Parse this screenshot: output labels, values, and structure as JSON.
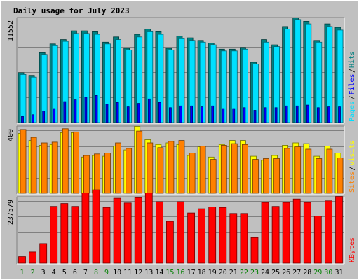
{
  "chart_data": {
    "type": "bar",
    "title": "Daily usage for July 2023",
    "x": [
      "1",
      "2",
      "3",
      "4",
      "5",
      "6",
      "7",
      "8",
      "9",
      "10",
      "11",
      "12",
      "13",
      "14",
      "15",
      "16",
      "17",
      "18",
      "19",
      "20",
      "21",
      "22",
      "23",
      "24",
      "25",
      "26",
      "27",
      "28",
      "29",
      "30",
      "31"
    ],
    "weekend_days": [
      "1",
      "2",
      "8",
      "9",
      "15",
      "16",
      "22",
      "23",
      "29",
      "30"
    ],
    "colors": {
      "background": "#c0c0c0",
      "plot": "#c0c0c0",
      "title": "#0000ff",
      "hits": "#008080",
      "files": "#00e0ff",
      "pages": "#0000ff",
      "visits": "#ffff00",
      "sites": "#ff8000",
      "kbytes": "#ff0000",
      "weekend_tick": "#008000",
      "weekday_tick": "#000000"
    },
    "panels": [
      {
        "id": "hits",
        "axis_max_label": "11552",
        "ymax": 11552,
        "legend": [
          {
            "label": "Hits",
            "color": "#008080"
          },
          {
            "label": "Files",
            "color": "#0000ff"
          },
          {
            "label": "Pages",
            "color": "#00e0ff"
          }
        ],
        "series": [
          {
            "name": "Hits",
            "color": "#008080",
            "values": [
              5700,
              5400,
              8000,
              9000,
              9500,
              10500,
              10500,
              10400,
              9200,
              9800,
              8500,
              10100,
              10700,
              10400,
              8500,
              9900,
              9700,
              9400,
              9100,
              8400,
              8400,
              8600,
              6900,
              9500,
              8900,
              11000,
              12000,
              11600,
              9400,
              11300,
              10900
            ]
          },
          {
            "name": "Files",
            "color": "#00e0ff",
            "values": [
              5500,
              5200,
              7800,
              8800,
              9300,
              10200,
              10200,
              10100,
              9000,
              9500,
              8300,
              9800,
              10400,
              10100,
              8300,
              9600,
              9400,
              9200,
              8900,
              8200,
              8200,
              8400,
              6700,
              9200,
              8700,
              10700,
              11800,
              11300,
              9200,
              11000,
              10600
            ]
          },
          {
            "name": "Pages",
            "color": "#0000ff",
            "values": [
              700,
              900,
              1300,
              1600,
              2400,
              2600,
              2900,
              3100,
              2100,
              2300,
              1800,
              2200,
              2700,
              2300,
              1700,
              1900,
              1900,
              1800,
              1900,
              1600,
              1600,
              1700,
              1400,
              1700,
              1700,
              1900,
              1900,
              2000,
              1700,
              1800,
              1800
            ]
          }
        ]
      },
      {
        "id": "visits",
        "axis_max_label": "400",
        "ymax": 400,
        "legend": [
          {
            "label": "Visits",
            "color": "#ffff00"
          },
          {
            "label": "Sites",
            "color": "#ff8000"
          }
        ],
        "series": [
          {
            "name": "Visits",
            "color": "#ffff00",
            "values": [
              380,
              335,
              305,
              310,
              385,
              385,
              230,
              240,
              235,
              300,
              275,
              425,
              340,
              310,
              320,
              310,
              240,
              295,
              230,
              310,
              335,
              335,
              235,
              210,
              240,
              305,
              320,
              315,
              235,
              300,
              255
            ]
          },
          {
            "name": "Sites",
            "color": "#ff8000",
            "values": [
              405,
              355,
              320,
              325,
              410,
              390,
              240,
              250,
              255,
              320,
              285,
              395,
              320,
              290,
              330,
              335,
              255,
              300,
              215,
              305,
              315,
              310,
              215,
              220,
              220,
              285,
              295,
              280,
              220,
              280,
              225
            ]
          }
        ]
      },
      {
        "id": "kbytes",
        "axis_max_label": "237579",
        "ymax": 237579,
        "legend": [
          {
            "label": "KBytes",
            "color": "#ff0000"
          }
        ],
        "series": [
          {
            "name": "KBytes",
            "color": "#ff0000",
            "values": [
              25000,
              43000,
              75000,
              217000,
              228000,
              217000,
              268000,
              280000,
              213000,
              248000,
              230000,
              250000,
              268000,
              235000,
              160000,
              235000,
              192000,
              208000,
              215000,
              213000,
              190000,
              190000,
              98000,
              232000,
              217000,
              232000,
              245000,
              232000,
              180000,
              238000,
              255000
            ]
          }
        ]
      }
    ]
  }
}
